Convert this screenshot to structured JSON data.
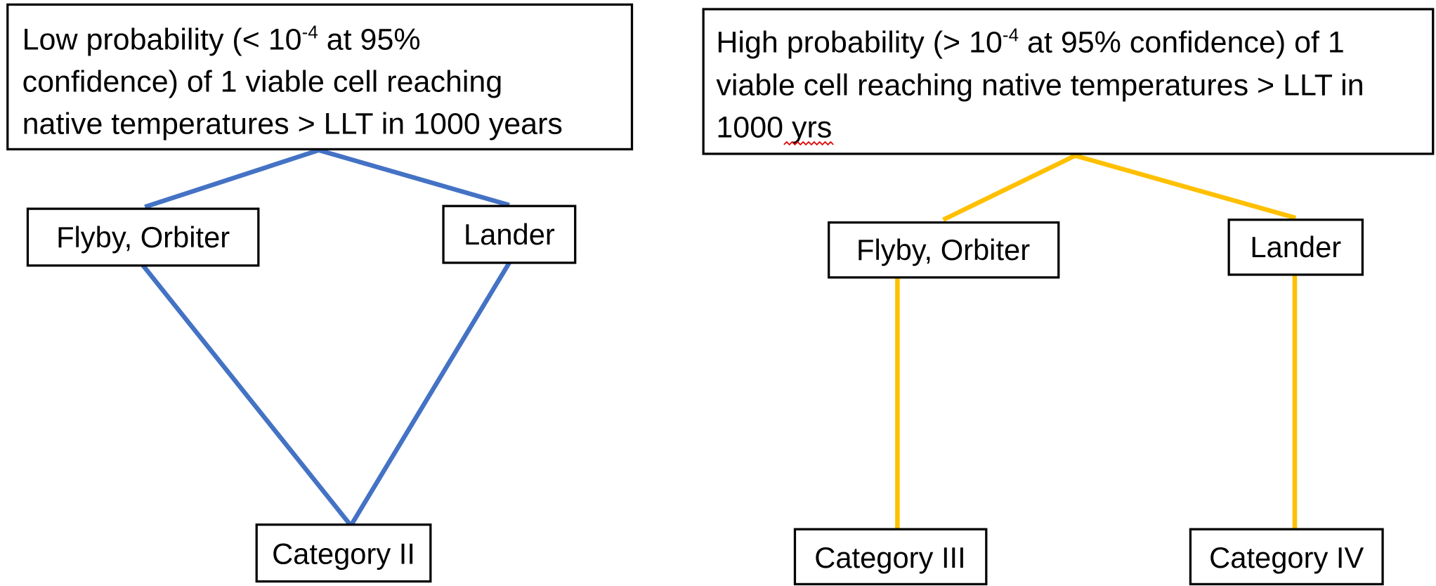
{
  "left": {
    "condition": [
      [
        "Low probability (< 10",
        "-4",
        " at 95%"
      ],
      [
        "confidence) of 1 viable cell reaching"
      ],
      [
        "native temperatures > LLT in 1000 years"
      ]
    ],
    "mission_a": "Flyby, Orbiter",
    "mission_b": "Lander",
    "category": "Category II"
  },
  "right": {
    "condition": [
      [
        "High probability (> 10",
        "-4",
        " at 95% confidence) of 1"
      ],
      [
        "viable cell reaching native temperatures > LLT in"
      ],
      [
        "1000 yrs"
      ]
    ],
    "mission_a": "Flyby, Orbiter",
    "mission_b": "Lander",
    "category_a": "Category III",
    "category_b": "Category IV"
  }
}
